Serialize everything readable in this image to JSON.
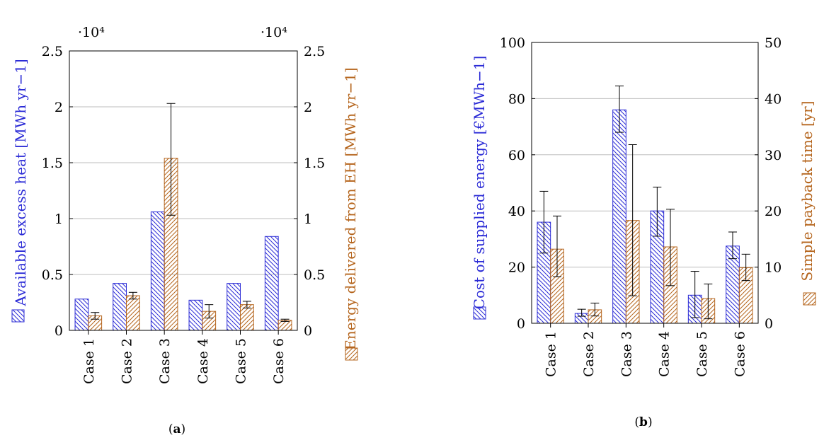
{
  "colors": {
    "blue": "#2b2bd6",
    "orange": "#b5651d",
    "grid": "#bdbdbd",
    "axis": "#000000",
    "errorbar": "#000000"
  },
  "chart_data": [
    {
      "type": "bar",
      "panel": "(a)",
      "caption_letter": "a",
      "categories": [
        "Case 1",
        "Case 2",
        "Case 3",
        "Case 4",
        "Case 5",
        "Case 6"
      ],
      "y_left": {
        "label": "Available excess heat [MWh yr−1]",
        "lim": [
          0,
          2.5
        ],
        "ticks": [
          "0",
          "0.5",
          "1",
          "1.5",
          "2",
          "2.5"
        ],
        "multiplier": "·10⁴"
      },
      "y_right": {
        "label": "Energy delivered from EH [MWh yr−1]",
        "lim": [
          0,
          2.5
        ],
        "ticks": [
          "0",
          "0.5",
          "1",
          "1.5",
          "2",
          "2.5"
        ],
        "multiplier": "·10⁴"
      },
      "grid": true,
      "series": [
        {
          "axis": "left",
          "pattern": "blue-hatch",
          "values": [
            0.28,
            0.42,
            1.06,
            0.27,
            0.42,
            0.84
          ]
        },
        {
          "axis": "right",
          "pattern": "orange-hatch",
          "values": [
            0.13,
            0.31,
            1.54,
            0.17,
            0.23,
            0.09
          ],
          "err_low": [
            0.1,
            0.28,
            1.03,
            0.11,
            0.2,
            0.08
          ],
          "err_high": [
            0.16,
            0.34,
            2.03,
            0.23,
            0.26,
            0.1
          ]
        }
      ]
    },
    {
      "type": "bar",
      "panel": "(b)",
      "caption_letter": "b",
      "categories": [
        "Case 1",
        "Case 2",
        "Case 3",
        "Case 4",
        "Case 5",
        "Case 6"
      ],
      "y_left": {
        "label": "Cost of supplied energy [€MWh−1]",
        "lim": [
          0,
          100
        ],
        "ticks": [
          "0",
          "20",
          "40",
          "60",
          "80",
          "100"
        ]
      },
      "y_right": {
        "label": "Simple payback time [yr]",
        "lim": [
          0,
          50
        ],
        "ticks": [
          "0",
          "10",
          "20",
          "30",
          "40",
          "50"
        ]
      },
      "grid": true,
      "series": [
        {
          "axis": "left",
          "pattern": "blue-hatch",
          "values": [
            36,
            3.5,
            76,
            40,
            10,
            27.5
          ],
          "err_low": [
            25,
            2.5,
            68,
            31,
            2,
            23
          ],
          "err_high": [
            47,
            5,
            84.5,
            48.5,
            18.5,
            32.5
          ]
        },
        {
          "axis": "right",
          "pattern": "orange-hatch",
          "values": [
            13.2,
            2.4,
            18.3,
            13.6,
            4.4,
            9.9
          ],
          "err_low": [
            8.3,
            1.3,
            4.9,
            6.7,
            0.8,
            7.6
          ],
          "err_high": [
            19.1,
            3.6,
            31.8,
            20.3,
            7.0,
            12.3
          ]
        }
      ]
    }
  ]
}
